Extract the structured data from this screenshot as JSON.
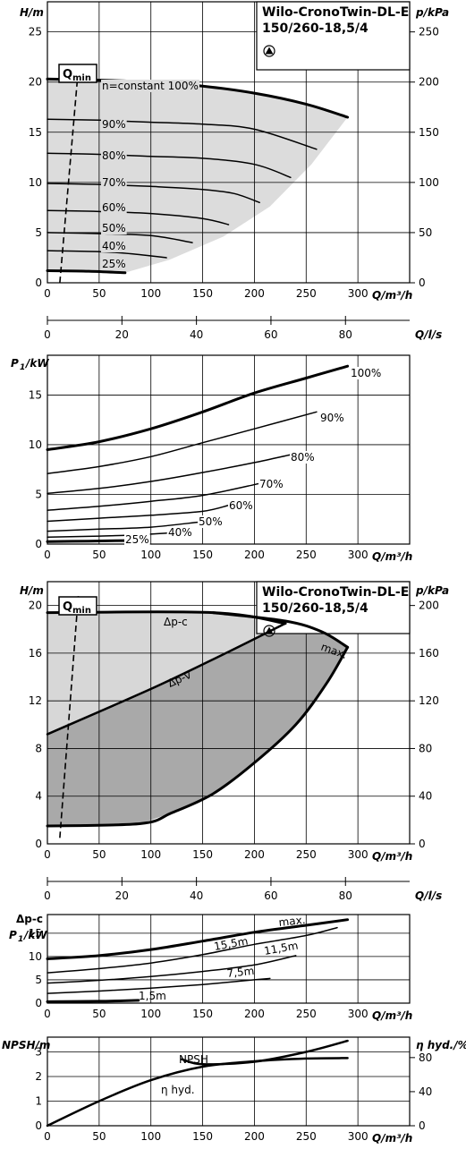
{
  "chart_data": [
    {
      "id": "curves1",
      "type": "line",
      "title_line1": "Wilo-CronoTwin-DL-E",
      "title_line2": "150/260-18,5/4",
      "ylabel_left": "H/m",
      "ylabel_right": "p/kPa",
      "xlabel": "Q/m³/h",
      "xlabel_secondary": "Q/l/s",
      "xlim": [
        0,
        350
      ],
      "ylim": [
        0,
        28
      ],
      "ylim_right": [
        0,
        280
      ],
      "xticks": [
        0,
        50,
        100,
        150,
        200,
        250,
        300
      ],
      "xticks_secondary": [
        0,
        20,
        40,
        60,
        80
      ],
      "yticks": [
        0,
        5,
        10,
        15,
        20,
        25
      ],
      "yticks_right": [
        0,
        50,
        100,
        150,
        200,
        250
      ],
      "grid": true,
      "qmin_label": "Q",
      "qmin_sub": "min",
      "qmin_line": [
        [
          12,
          0
        ],
        [
          30,
          21.5
        ]
      ],
      "series": [
        {
          "name": "n=constant 100%",
          "points": [
            [
              0,
              20.3
            ],
            [
              50,
              20.2
            ],
            [
              100,
              20.0
            ],
            [
              150,
              19.6
            ],
            [
              200,
              18.9
            ],
            [
              250,
              17.8
            ],
            [
              290,
              16.5
            ]
          ]
        },
        {
          "name": "90%",
          "points": [
            [
              0,
              16.3
            ],
            [
              50,
              16.2
            ],
            [
              100,
              16.0
            ],
            [
              150,
              15.8
            ],
            [
              200,
              15.3
            ],
            [
              260,
              13.3
            ]
          ]
        },
        {
          "name": "80%",
          "points": [
            [
              0,
              12.9
            ],
            [
              50,
              12.8
            ],
            [
              100,
              12.6
            ],
            [
              150,
              12.4
            ],
            [
              200,
              11.8
            ],
            [
              235,
              10.5
            ]
          ]
        },
        {
          "name": "70%",
          "points": [
            [
              0,
              9.9
            ],
            [
              50,
              9.8
            ],
            [
              100,
              9.6
            ],
            [
              150,
              9.3
            ],
            [
              180,
              8.9
            ],
            [
              205,
              8.0
            ]
          ]
        },
        {
          "name": "60%",
          "points": [
            [
              0,
              7.2
            ],
            [
              50,
              7.1
            ],
            [
              100,
              6.9
            ],
            [
              150,
              6.4
            ],
            [
              175,
              5.8
            ]
          ]
        },
        {
          "name": "50%",
          "points": [
            [
              0,
              5.0
            ],
            [
              50,
              4.9
            ],
            [
              100,
              4.7
            ],
            [
              140,
              4.0
            ]
          ]
        },
        {
          "name": "40%",
          "points": [
            [
              0,
              3.2
            ],
            [
              50,
              3.1
            ],
            [
              80,
              2.9
            ],
            [
              115,
              2.5
            ]
          ]
        },
        {
          "name": "25%",
          "points": [
            [
              0,
              1.2
            ],
            [
              40,
              1.15
            ],
            [
              75,
              1.0
            ]
          ]
        }
      ],
      "area": [
        [
          0,
          20.3
        ],
        [
          50,
          20.2
        ],
        [
          100,
          20.0
        ],
        [
          150,
          19.6
        ],
        [
          200,
          18.9
        ],
        [
          250,
          17.8
        ],
        [
          290,
          16.5
        ],
        [
          255,
          11.8
        ],
        [
          215,
          7.6
        ],
        [
          170,
          4.6
        ],
        [
          118,
          2.3
        ],
        [
          75,
          1.0
        ],
        [
          0,
          1.2
        ]
      ]
    },
    {
      "id": "power1",
      "type": "line",
      "ylabel": "P",
      "ylabel_sub": "1",
      "ylabel_unit": "/kW",
      "xlabel": "Q/m³/h",
      "xlim": [
        0,
        350
      ],
      "ylim": [
        0,
        19
      ],
      "xticks": [
        0,
        50,
        100,
        150,
        200,
        250,
        300
      ],
      "yticks": [
        0,
        5,
        10,
        15
      ],
      "grid": true,
      "series": [
        {
          "name": "100%",
          "points": [
            [
              0,
              9.5
            ],
            [
              50,
              10.3
            ],
            [
              100,
              11.6
            ],
            [
              150,
              13.3
            ],
            [
              200,
              15.2
            ],
            [
              250,
              16.7
            ],
            [
              290,
              17.9
            ]
          ]
        },
        {
          "name": "90%",
          "points": [
            [
              0,
              7.1
            ],
            [
              50,
              7.8
            ],
            [
              100,
              8.8
            ],
            [
              150,
              10.2
            ],
            [
              200,
              11.6
            ],
            [
              260,
              13.3
            ]
          ]
        },
        {
          "name": "80%",
          "points": [
            [
              0,
              5.1
            ],
            [
              50,
              5.6
            ],
            [
              100,
              6.3
            ],
            [
              150,
              7.2
            ],
            [
              200,
              8.2
            ],
            [
              235,
              9.0
            ]
          ]
        },
        {
          "name": "70%",
          "points": [
            [
              0,
              3.4
            ],
            [
              50,
              3.8
            ],
            [
              100,
              4.3
            ],
            [
              150,
              4.9
            ],
            [
              205,
              6.1
            ]
          ]
        },
        {
          "name": "60%",
          "points": [
            [
              0,
              2.3
            ],
            [
              50,
              2.6
            ],
            [
              100,
              2.9
            ],
            [
              150,
              3.3
            ],
            [
              175,
              3.9
            ]
          ]
        },
        {
          "name": "50%",
          "points": [
            [
              0,
              1.3
            ],
            [
              50,
              1.5
            ],
            [
              100,
              1.7
            ],
            [
              145,
              2.2
            ]
          ]
        },
        {
          "name": "40%",
          "points": [
            [
              0,
              0.7
            ],
            [
              50,
              0.8
            ],
            [
              80,
              0.9
            ],
            [
              115,
              1.1
            ]
          ]
        },
        {
          "name": "25%",
          "points": [
            [
              0,
              0.25
            ],
            [
              40,
              0.3
            ],
            [
              75,
              0.35
            ]
          ]
        }
      ]
    },
    {
      "id": "curves2",
      "type": "line",
      "title_line1": "Wilo-CronoTwin-DL-E",
      "title_line2": "150/260-18,5/4",
      "ylabel_left": "H/m",
      "ylabel_right": "p/kPa",
      "xlabel": "Q/m³/h",
      "xlabel_secondary": "Q/l/s",
      "xlim": [
        0,
        350
      ],
      "ylim": [
        0,
        22
      ],
      "ylim_right": [
        0,
        220
      ],
      "xticks": [
        0,
        50,
        100,
        150,
        200,
        250,
        300
      ],
      "xticks_secondary": [
        0,
        20,
        40,
        60,
        80
      ],
      "yticks": [
        0,
        4,
        8,
        12,
        16,
        20
      ],
      "yticks_right": [
        0,
        40,
        80,
        120,
        160,
        200
      ],
      "grid": true,
      "qmin_label": "Q",
      "qmin_sub": "min",
      "qmin_line": [
        [
          12,
          0.5
        ],
        [
          30,
          21.0
        ]
      ],
      "series": [
        {
          "name": "Δp-c",
          "points": [
            [
              0,
              19.4
            ],
            [
              160,
              19.4
            ],
            [
              230,
              18.5
            ]
          ]
        },
        {
          "name": "Δp-v",
          "points": [
            [
              0,
              9.2
            ],
            [
              100,
              13.0
            ],
            [
              170,
              15.9
            ],
            [
              230,
              18.5
            ]
          ]
        },
        {
          "name": "max.",
          "points": [
            [
              160,
              19.4
            ],
            [
              230,
              18.7
            ],
            [
              265,
              17.8
            ],
            [
              290,
              16.5
            ]
          ]
        },
        {
          "name": "",
          "points": [
            [
              290,
              16.5
            ],
            [
              270,
              13.5
            ],
            [
              240,
              10.0
            ],
            [
              200,
              6.8
            ],
            [
              160,
              4.2
            ],
            [
              120,
              2.6
            ],
            [
              90,
              1.7
            ],
            [
              0,
              1.5
            ]
          ]
        }
      ],
      "area_light": [
        [
          0,
          19.4
        ],
        [
          160,
          19.4
        ],
        [
          230,
          18.5
        ],
        [
          170,
          15.9
        ],
        [
          100,
          13.0
        ],
        [
          0,
          9.2
        ]
      ],
      "area_dark": [
        [
          0,
          9.2
        ],
        [
          100,
          13.0
        ],
        [
          170,
          15.9
        ],
        [
          230,
          18.5
        ],
        [
          265,
          17.8
        ],
        [
          290,
          16.5
        ],
        [
          270,
          13.5
        ],
        [
          240,
          10.0
        ],
        [
          200,
          6.8
        ],
        [
          160,
          4.2
        ],
        [
          120,
          2.6
        ],
        [
          90,
          1.7
        ],
        [
          0,
          1.5
        ]
      ]
    },
    {
      "id": "power2",
      "type": "line",
      "ylabel": "Δp-c",
      "ylabel2": "P",
      "ylabel2_sub": "1",
      "ylabel2_unit": "/kW",
      "xlabel": "Q/m³/h",
      "xlim": [
        0,
        350
      ],
      "ylim": [
        0,
        19
      ],
      "xticks": [
        0,
        50,
        100,
        150,
        200,
        250,
        300
      ],
      "yticks": [
        0,
        5,
        10,
        15
      ],
      "grid": true,
      "series": [
        {
          "name": "max.",
          "points": [
            [
              0,
              9.5
            ],
            [
              50,
              10.2
            ],
            [
              100,
              11.5
            ],
            [
              150,
              13.3
            ],
            [
              200,
              15.2
            ],
            [
              250,
              16.7
            ],
            [
              290,
              17.9
            ]
          ]
        },
        {
          "name": "15,5m",
          "points": [
            [
              0,
              6.5
            ],
            [
              50,
              7.4
            ],
            [
              100,
              8.6
            ],
            [
              150,
              10.4
            ],
            [
              200,
              12.6
            ],
            [
              250,
              14.5
            ],
            [
              280,
              16.2
            ]
          ]
        },
        {
          "name": "11,5m",
          "points": [
            [
              0,
              4.3
            ],
            [
              50,
              4.9
            ],
            [
              100,
              5.7
            ],
            [
              150,
              6.8
            ],
            [
              200,
              8.2
            ],
            [
              240,
              10.2
            ]
          ]
        },
        {
          "name": "7,5m",
          "points": [
            [
              0,
              2.1
            ],
            [
              50,
              2.6
            ],
            [
              100,
              3.2
            ],
            [
              150,
              4.0
            ],
            [
              200,
              5.0
            ],
            [
              215,
              5.3
            ]
          ]
        },
        {
          "name": "1,5m",
          "points": [
            [
              0,
              0.3
            ],
            [
              50,
              0.4
            ],
            [
              88,
              0.6
            ]
          ]
        }
      ]
    },
    {
      "id": "npsh",
      "type": "line",
      "ylabel_left": "NPSH/m",
      "ylabel_right": "η hyd./%",
      "xlabel": "Q/m³/h",
      "xlim": [
        0,
        350
      ],
      "ylim": [
        0,
        3.6
      ],
      "ylim_right": [
        0,
        104
      ],
      "xticks": [
        0,
        50,
        100,
        150,
        200,
        250,
        300
      ],
      "yticks": [
        0,
        1,
        2,
        3
      ],
      "yticks_right": [
        0,
        40,
        80
      ],
      "grid": true,
      "series": [
        {
          "name": "NPSH",
          "points": [
            [
              130,
              2.7
            ],
            [
              150,
              2.5
            ],
            [
              200,
              2.6
            ],
            [
              250,
              3.0
            ],
            [
              290,
              3.45
            ]
          ]
        },
        {
          "name": "η hyd.",
          "points": [
            [
              0,
              0.0
            ],
            [
              50,
              1.0
            ],
            [
              100,
              1.85
            ],
            [
              150,
              2.4
            ],
            [
              200,
              2.62
            ],
            [
              250,
              2.73
            ],
            [
              290,
              2.75
            ]
          ]
        }
      ]
    }
  ]
}
